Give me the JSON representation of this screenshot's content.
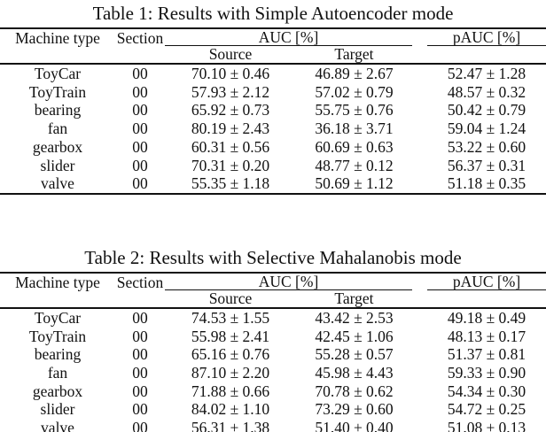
{
  "page": {
    "background": "#ffffff",
    "text_color": "#111111",
    "rule_color": "#111111"
  },
  "tables": [
    {
      "title": "Table 1: Results with Simple Autoencoder mode",
      "headers": {
        "machine_type": "Machine type",
        "section": "Section",
        "auc": "AUC [%]",
        "source": "Source",
        "target": "Target",
        "pauc": "pAUC [%]"
      },
      "rows": [
        {
          "machine": "ToyCar",
          "section": "00",
          "auc_source": "70.10 ± 0.46",
          "auc_target": "46.89 ± 2.67",
          "pauc": "52.47 ± 1.28"
        },
        {
          "machine": "ToyTrain",
          "section": "00",
          "auc_source": "57.93 ± 2.12",
          "auc_target": "57.02 ± 0.79",
          "pauc": "48.57 ± 0.32"
        },
        {
          "machine": "bearing",
          "section": "00",
          "auc_source": "65.92 ± 0.73",
          "auc_target": "55.75 ± 0.76",
          "pauc": "50.42 ± 0.79"
        },
        {
          "machine": "fan",
          "section": "00",
          "auc_source": "80.19 ± 2.43",
          "auc_target": "36.18 ± 3.71",
          "pauc": "59.04 ± 1.24"
        },
        {
          "machine": "gearbox",
          "section": "00",
          "auc_source": "60.31 ± 0.56",
          "auc_target": "60.69 ± 0.63",
          "pauc": "53.22 ± 0.60"
        },
        {
          "machine": "slider",
          "section": "00",
          "auc_source": "70.31 ± 0.20",
          "auc_target": "48.77 ± 0.12",
          "pauc": "56.37 ± 0.31"
        },
        {
          "machine": "valve",
          "section": "00",
          "auc_source": "55.35 ± 1.18",
          "auc_target": "50.69 ± 1.12",
          "pauc": "51.18 ± 0.35"
        }
      ]
    },
    {
      "title": "Table 2: Results with Selective Mahalanobis mode",
      "headers": {
        "machine_type": "Machine type",
        "section": "Section",
        "auc": "AUC [%]",
        "source": "Source",
        "target": "Target",
        "pauc": "pAUC [%]"
      },
      "rows": [
        {
          "machine": "ToyCar",
          "section": "00",
          "auc_source": "74.53 ± 1.55",
          "auc_target": "43.42 ± 2.53",
          "pauc": "49.18 ± 0.49"
        },
        {
          "machine": "ToyTrain",
          "section": "00",
          "auc_source": "55.98 ± 2.41",
          "auc_target": "42.45 ± 1.06",
          "pauc": "48.13 ± 0.17"
        },
        {
          "machine": "bearing",
          "section": "00",
          "auc_source": "65.16 ± 0.76",
          "auc_target": "55.28 ± 0.57",
          "pauc": "51.37 ± 0.81"
        },
        {
          "machine": "fan",
          "section": "00",
          "auc_source": "87.10 ± 2.20",
          "auc_target": "45.98 ± 4.43",
          "pauc": "59.33 ± 0.90"
        },
        {
          "machine": "gearbox",
          "section": "00",
          "auc_source": "71.88 ± 0.66",
          "auc_target": "70.78 ± 0.62",
          "pauc": "54.34 ± 0.30"
        },
        {
          "machine": "slider",
          "section": "00",
          "auc_source": "84.02 ± 1.10",
          "auc_target": "73.29 ± 0.60",
          "pauc": "54.72 ± 0.25"
        },
        {
          "machine": "valve",
          "section": "00",
          "auc_source": "56.31 ± 1.38",
          "auc_target": "51.40 ± 0.40",
          "pauc": "51.08 ± 0.13"
        }
      ]
    }
  ]
}
